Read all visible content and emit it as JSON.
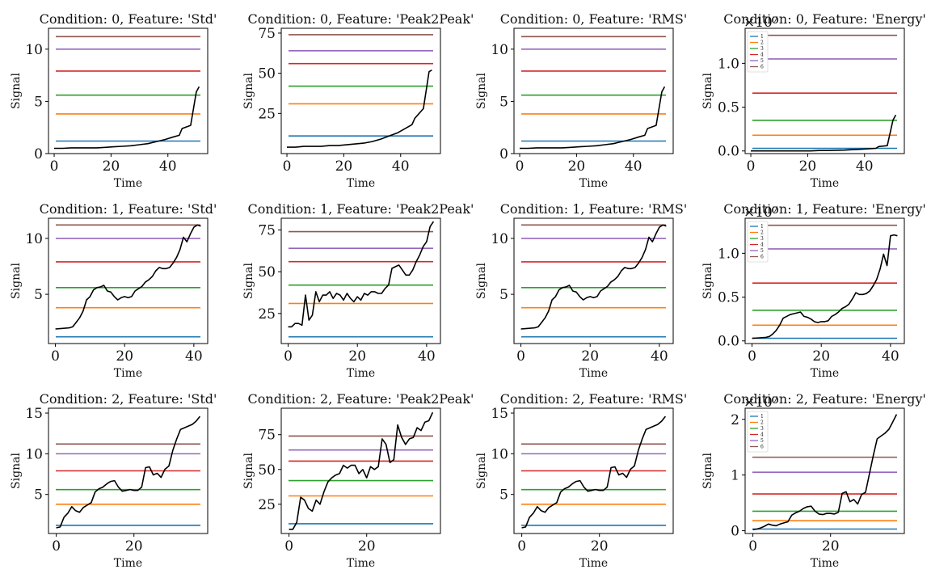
{
  "figure": {
    "x_label": "Time",
    "y_label": "Signal",
    "legend": [
      "1",
      "2",
      "3",
      "4",
      "5",
      "6"
    ],
    "colors": [
      "#1f77b4",
      "#ff7f0e",
      "#2ca02c",
      "#d62728",
      "#9467bd",
      "#8c564b"
    ],
    "signal_color": "#000000",
    "features": [
      "Std",
      "Peak2Peak",
      "RMS",
      "Energy"
    ],
    "conditions": [
      0,
      1,
      2
    ]
  },
  "chart_data": [
    {
      "type": "line",
      "title": "Condition: 0, Feature: 'Std'",
      "xlabel": "Time",
      "ylabel": "Signal",
      "xlim": [
        -2,
        54
      ],
      "ylim": [
        0,
        12
      ],
      "xticks": [
        0,
        20,
        40
      ],
      "yticks": [
        0,
        5,
        10
      ],
      "yticklabels": [
        "0",
        "5",
        "10"
      ],
      "thresholds": [
        1.2,
        3.8,
        5.6,
        7.9,
        10.0,
        11.2
      ],
      "signal": {
        "x": [
          0,
          3,
          6,
          9,
          12,
          15,
          18,
          21,
          24,
          27,
          30,
          33,
          36,
          39,
          42,
          44,
          45,
          48,
          50,
          51
        ],
        "y": [
          0.5,
          0.5,
          0.55,
          0.55,
          0.55,
          0.55,
          0.6,
          0.65,
          0.7,
          0.75,
          0.85,
          0.95,
          1.15,
          1.35,
          1.6,
          1.75,
          2.4,
          2.7,
          5.9,
          6.4
        ]
      }
    },
    {
      "type": "line",
      "title": "Condition: 0, Feature: 'Peak2Peak'",
      "xlabel": "Time",
      "ylabel": "Signal",
      "xlim": [
        -2,
        54
      ],
      "ylim": [
        0,
        78
      ],
      "xticks": [
        0,
        20,
        40
      ],
      "yticks": [
        25,
        50,
        75
      ],
      "yticklabels": [
        "25",
        "50",
        "75"
      ],
      "thresholds": [
        11,
        31,
        42,
        56,
        64,
        74
      ],
      "signal": {
        "x": [
          0,
          3,
          6,
          9,
          12,
          15,
          18,
          21,
          24,
          27,
          30,
          33,
          36,
          39,
          42,
          44,
          45,
          48,
          50,
          51
        ],
        "y": [
          4,
          4,
          4.5,
          4.5,
          4.5,
          5,
          5,
          5.5,
          6,
          6.5,
          7.5,
          9,
          11,
          13,
          16,
          18,
          22,
          28,
          51,
          52
        ]
      }
    },
    {
      "type": "line",
      "title": "Condition: 0, Feature: 'RMS'",
      "xlabel": "Time",
      "ylabel": "Signal",
      "xlim": [
        -2,
        54
      ],
      "ylim": [
        0,
        12
      ],
      "xticks": [
        0,
        20,
        40
      ],
      "yticks": [
        0,
        5,
        10
      ],
      "yticklabels": [
        "0",
        "5",
        "10"
      ],
      "thresholds": [
        1.2,
        3.8,
        5.6,
        7.9,
        10.0,
        11.2
      ],
      "signal": {
        "x": [
          0,
          3,
          6,
          9,
          12,
          15,
          18,
          21,
          24,
          27,
          30,
          33,
          36,
          39,
          42,
          44,
          45,
          48,
          50,
          51
        ],
        "y": [
          0.5,
          0.5,
          0.55,
          0.55,
          0.55,
          0.55,
          0.6,
          0.65,
          0.7,
          0.75,
          0.85,
          0.95,
          1.15,
          1.35,
          1.6,
          1.75,
          2.4,
          2.7,
          5.9,
          6.4
        ]
      }
    },
    {
      "type": "line",
      "title": "Condition: 0, Feature: 'Energy'",
      "xlabel": "Time",
      "ylabel": "Signal",
      "xlim": [
        -2,
        54
      ],
      "ylim": [
        -0.03,
        1.4
      ],
      "xticks": [
        0,
        20,
        40
      ],
      "yticks": [
        0,
        0.5,
        1.0
      ],
      "yticklabels": [
        "0.0",
        "0.5",
        "1.0"
      ],
      "offset_text": "×10⁷",
      "thresholds": [
        0.03,
        0.18,
        0.35,
        0.66,
        1.05,
        1.32
      ],
      "signal": {
        "x": [
          0,
          3,
          6,
          9,
          12,
          15,
          18,
          21,
          24,
          27,
          30,
          33,
          36,
          39,
          42,
          44,
          45,
          48,
          50,
          51
        ],
        "y": [
          0.0,
          0.0,
          0.0,
          0.0,
          0.0,
          0.0,
          0.0,
          0.0,
          0.005,
          0.005,
          0.008,
          0.01,
          0.015,
          0.02,
          0.025,
          0.03,
          0.05,
          0.06,
          0.35,
          0.41
        ]
      }
    },
    {
      "type": "line",
      "title": "Condition: 1, Feature: 'Std'",
      "xlabel": "Time",
      "ylabel": "Signal",
      "xlim": [
        -2,
        44
      ],
      "ylim": [
        0.6,
        11.8
      ],
      "xticks": [
        0,
        20,
        40
      ],
      "yticks": [
        5,
        10
      ],
      "yticklabels": [
        "5",
        "10"
      ],
      "thresholds": [
        1.2,
        3.8,
        5.6,
        7.9,
        10.0,
        11.2
      ],
      "signal": {
        "x": [
          0,
          2,
          4,
          5,
          6,
          7,
          8,
          9,
          10,
          11,
          12,
          13,
          14,
          15,
          16,
          17,
          18,
          19,
          20,
          21,
          22,
          23,
          24,
          25,
          26,
          27,
          28,
          29,
          30,
          31,
          32,
          33,
          34,
          35,
          36,
          37,
          38,
          39,
          40,
          41,
          42
        ],
        "y": [
          1.9,
          1.95,
          2.0,
          2.1,
          2.5,
          2.9,
          3.5,
          4.5,
          4.8,
          5.4,
          5.6,
          5.65,
          5.8,
          5.3,
          5.2,
          4.8,
          4.5,
          4.7,
          4.8,
          4.7,
          4.8,
          5.3,
          5.5,
          5.7,
          6.1,
          6.3,
          6.6,
          7.1,
          7.4,
          7.3,
          7.3,
          7.4,
          7.8,
          8.3,
          9.0,
          10.1,
          9.7,
          10.4,
          11.0,
          11.2,
          11.1
        ]
      }
    },
    {
      "type": "line",
      "title": "Condition: 1, Feature: 'Peak2Peak'",
      "xlabel": "Time",
      "ylabel": "Signal",
      "xlim": [
        -2,
        44
      ],
      "ylim": [
        7,
        82
      ],
      "xticks": [
        0,
        20,
        40
      ],
      "yticks": [
        25,
        50,
        75
      ],
      "yticklabels": [
        "25",
        "50",
        "75"
      ],
      "thresholds": [
        11,
        31,
        42,
        56,
        64,
        74
      ],
      "signal": {
        "x": [
          0,
          1,
          2,
          3,
          4,
          5,
          6,
          7,
          8,
          9,
          10,
          11,
          12,
          13,
          14,
          15,
          16,
          17,
          18,
          19,
          20,
          21,
          22,
          23,
          24,
          25,
          26,
          27,
          28,
          29,
          30,
          31,
          32,
          33,
          34,
          35,
          36,
          37,
          38,
          39,
          40,
          41,
          42
        ],
        "y": [
          17,
          17,
          19,
          19,
          18,
          36,
          21,
          24,
          38,
          32,
          36,
          36,
          38,
          34,
          37,
          36,
          33,
          37,
          34,
          32,
          35,
          33,
          37,
          36,
          38,
          38,
          37,
          37,
          40,
          42,
          52,
          53,
          54,
          51,
          48,
          48,
          51,
          56,
          60,
          65,
          68,
          77,
          80
        ]
      }
    },
    {
      "type": "line",
      "title": "Condition: 1, Feature: 'RMS'",
      "xlabel": "Time",
      "ylabel": "Signal",
      "xlim": [
        -2,
        44
      ],
      "ylim": [
        0.6,
        11.8
      ],
      "xticks": [
        0,
        20,
        40
      ],
      "yticks": [
        5,
        10
      ],
      "yticklabels": [
        "5",
        "10"
      ],
      "thresholds": [
        1.2,
        3.8,
        5.6,
        7.9,
        10.0,
        11.2
      ],
      "signal": {
        "x": [
          0,
          2,
          4,
          5,
          6,
          7,
          8,
          9,
          10,
          11,
          12,
          13,
          14,
          15,
          16,
          17,
          18,
          19,
          20,
          21,
          22,
          23,
          24,
          25,
          26,
          27,
          28,
          29,
          30,
          31,
          32,
          33,
          34,
          35,
          36,
          37,
          38,
          39,
          40,
          41,
          42
        ],
        "y": [
          1.9,
          1.95,
          2.0,
          2.1,
          2.5,
          2.9,
          3.5,
          4.5,
          4.8,
          5.4,
          5.6,
          5.65,
          5.8,
          5.3,
          5.2,
          4.8,
          4.5,
          4.7,
          4.8,
          4.7,
          4.8,
          5.3,
          5.5,
          5.7,
          6.1,
          6.3,
          6.6,
          7.1,
          7.4,
          7.3,
          7.3,
          7.4,
          7.8,
          8.3,
          9.0,
          10.1,
          9.7,
          10.4,
          11.0,
          11.2,
          11.1
        ]
      }
    },
    {
      "type": "line",
      "title": "Condition: 1, Feature: 'Energy'",
      "xlabel": "Time",
      "ylabel": "Signal",
      "xlim": [
        -2,
        44
      ],
      "ylim": [
        -0.03,
        1.4
      ],
      "xticks": [
        0,
        20,
        40
      ],
      "yticks": [
        0,
        0.5,
        1.0
      ],
      "yticklabels": [
        "0.0",
        "0.5",
        "1.0"
      ],
      "offset_text": "×10⁷",
      "thresholds": [
        0.03,
        0.18,
        0.35,
        0.66,
        1.05,
        1.32
      ],
      "signal": {
        "x": [
          0,
          2,
          4,
          5,
          6,
          7,
          8,
          9,
          10,
          11,
          12,
          13,
          14,
          15,
          16,
          17,
          18,
          19,
          20,
          21,
          22,
          23,
          24,
          25,
          26,
          27,
          28,
          29,
          30,
          31,
          32,
          33,
          34,
          35,
          36,
          37,
          38,
          39,
          40,
          41,
          42
        ],
        "y": [
          0.03,
          0.035,
          0.04,
          0.05,
          0.08,
          0.12,
          0.18,
          0.26,
          0.28,
          0.3,
          0.31,
          0.32,
          0.33,
          0.28,
          0.27,
          0.25,
          0.22,
          0.21,
          0.22,
          0.22,
          0.23,
          0.28,
          0.3,
          0.33,
          0.37,
          0.39,
          0.42,
          0.48,
          0.55,
          0.53,
          0.53,
          0.54,
          0.57,
          0.63,
          0.7,
          0.82,
          0.99,
          0.86,
          1.2,
          1.21,
          1.2
        ]
      }
    },
    {
      "type": "line",
      "title": "Condition: 2, Feature: 'Std'",
      "xlabel": "Time",
      "ylabel": "Signal",
      "xlim": [
        -2,
        39
      ],
      "ylim": [
        0.2,
        15.6
      ],
      "xticks": [
        0,
        20
      ],
      "yticks": [
        5,
        10,
        15
      ],
      "yticklabels": [
        "5",
        "10",
        "15"
      ],
      "thresholds": [
        1.2,
        3.8,
        5.6,
        7.9,
        10.0,
        11.2
      ],
      "signal": {
        "x": [
          0,
          1,
          2,
          3,
          4,
          5,
          6,
          7,
          8,
          9,
          10,
          11,
          12,
          13,
          14,
          15,
          16,
          17,
          18,
          19,
          20,
          21,
          22,
          23,
          24,
          25,
          26,
          27,
          28,
          29,
          30,
          31,
          32,
          33,
          34,
          35,
          36,
          37
        ],
        "y": [
          0.9,
          1.0,
          2.2,
          2.7,
          3.5,
          3.0,
          2.8,
          3.4,
          3.7,
          4.0,
          5.3,
          5.7,
          5.9,
          6.3,
          6.6,
          6.7,
          5.9,
          5.4,
          5.5,
          5.6,
          5.5,
          5.5,
          5.9,
          8.3,
          8.4,
          7.4,
          7.6,
          7.1,
          8.1,
          8.5,
          10.4,
          11.8,
          13.0,
          13.2,
          13.4,
          13.6,
          14.0,
          14.6
        ]
      }
    },
    {
      "type": "line",
      "title": "Condition: 2, Feature: 'Peak2Peak'",
      "xlabel": "Time",
      "ylabel": "Signal",
      "xlim": [
        -2,
        39
      ],
      "ylim": [
        4,
        94
      ],
      "xticks": [
        0,
        20
      ],
      "yticks": [
        25,
        50,
        75
      ],
      "yticklabels": [
        "25",
        "50",
        "75"
      ],
      "thresholds": [
        11,
        31,
        42,
        56,
        64,
        74
      ],
      "signal": {
        "x": [
          0,
          1,
          2,
          3,
          4,
          5,
          6,
          7,
          8,
          9,
          10,
          11,
          12,
          13,
          14,
          15,
          16,
          17,
          18,
          19,
          20,
          21,
          22,
          23,
          24,
          25,
          26,
          27,
          28,
          29,
          30,
          31,
          32,
          33,
          34,
          35,
          36,
          37
        ],
        "y": [
          7,
          7,
          12,
          30,
          28,
          22,
          20,
          28,
          25,
          34,
          41,
          44,
          46,
          47,
          53,
          51,
          53,
          53,
          47,
          50,
          44,
          52,
          50,
          52,
          72,
          68,
          55,
          57,
          82,
          73,
          68,
          72,
          73,
          80,
          78,
          84,
          85,
          91
        ]
      }
    },
    {
      "type": "line",
      "title": "Condition: 2, Feature: 'RMS'",
      "xlabel": "Time",
      "ylabel": "Signal",
      "xlim": [
        -2,
        39
      ],
      "ylim": [
        0.2,
        15.6
      ],
      "xticks": [
        0,
        20
      ],
      "yticks": [
        5,
        10,
        15
      ],
      "yticklabels": [
        "5",
        "10",
        "15"
      ],
      "thresholds": [
        1.2,
        3.8,
        5.6,
        7.9,
        10.0,
        11.2
      ],
      "signal": {
        "x": [
          0,
          1,
          2,
          3,
          4,
          5,
          6,
          7,
          8,
          9,
          10,
          11,
          12,
          13,
          14,
          15,
          16,
          17,
          18,
          19,
          20,
          21,
          22,
          23,
          24,
          25,
          26,
          27,
          28,
          29,
          30,
          31,
          32,
          33,
          34,
          35,
          36,
          37
        ],
        "y": [
          0.9,
          1.0,
          2.2,
          2.7,
          3.5,
          3.0,
          2.8,
          3.4,
          3.7,
          4.0,
          5.3,
          5.7,
          5.9,
          6.3,
          6.6,
          6.7,
          5.9,
          5.4,
          5.5,
          5.6,
          5.5,
          5.5,
          5.9,
          8.3,
          8.4,
          7.4,
          7.6,
          7.1,
          8.1,
          8.5,
          10.4,
          11.8,
          13.0,
          13.2,
          13.4,
          13.6,
          14.0,
          14.6
        ]
      }
    },
    {
      "type": "line",
      "title": "Condition: 2, Feature: 'Energy'",
      "xlabel": "Time",
      "ylabel": "Signal",
      "xlim": [
        -2,
        39
      ],
      "ylim": [
        -0.05,
        2.2
      ],
      "xticks": [
        0,
        20
      ],
      "yticks": [
        0,
        1,
        2
      ],
      "yticklabels": [
        "0",
        "1",
        "2"
      ],
      "offset_text": "×10⁷",
      "thresholds": [
        0.03,
        0.18,
        0.35,
        0.66,
        1.05,
        1.32
      ],
      "signal": {
        "x": [
          0,
          1,
          2,
          3,
          4,
          5,
          6,
          7,
          8,
          9,
          10,
          11,
          12,
          13,
          14,
          15,
          16,
          17,
          18,
          19,
          20,
          21,
          22,
          23,
          24,
          25,
          26,
          27,
          28,
          29,
          30,
          31,
          32,
          33,
          34,
          35,
          36,
          37
        ],
        "y": [
          0.02,
          0.03,
          0.05,
          0.08,
          0.12,
          0.1,
          0.09,
          0.12,
          0.14,
          0.16,
          0.28,
          0.32,
          0.35,
          0.4,
          0.43,
          0.44,
          0.35,
          0.3,
          0.29,
          0.31,
          0.31,
          0.3,
          0.33,
          0.67,
          0.7,
          0.52,
          0.56,
          0.48,
          0.65,
          0.69,
          1.02,
          1.35,
          1.65,
          1.7,
          1.75,
          1.82,
          1.95,
          2.09
        ]
      }
    }
  ]
}
